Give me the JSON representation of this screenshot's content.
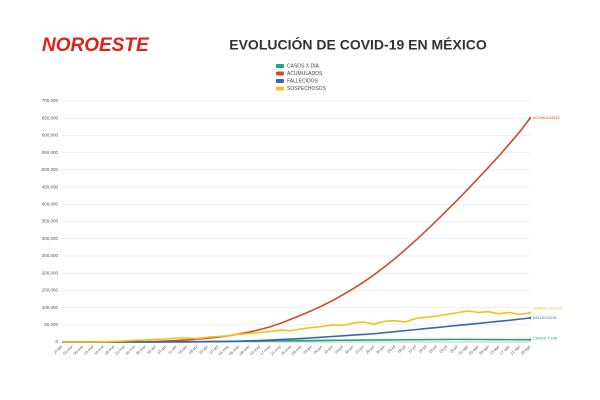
{
  "brand": "NOROESTE",
  "chart_data": {
    "type": "line",
    "title": "EVOLUCIÓN DE COVID-19 EN MÉXICO",
    "categories": [
      "27-feb",
      "02-mar",
      "06-mar",
      "10-mar",
      "14-mar",
      "18-mar",
      "22-mar",
      "26-mar",
      "30-mar",
      "03-abr",
      "07-abr",
      "11-abr",
      "15-abr",
      "19-abr",
      "23-abr",
      "27-abr",
      "01-may",
      "05-may",
      "09-may",
      "13-may",
      "17-may",
      "21-may",
      "25-may",
      "29-may",
      "02-jun",
      "06-jun",
      "10-jun",
      "14-jun",
      "18-jun",
      "22-jun",
      "26-jun",
      "30-jun",
      "04-jul",
      "08-jul",
      "12-jul",
      "16-jul",
      "20-jul",
      "24-jul",
      "28-jul",
      "01-ago",
      "05-ago",
      "09-ago",
      "13-ago",
      "17-ago",
      "21-ago",
      "25-ago"
    ],
    "series": [
      {
        "name": "CASOS X DÍA",
        "color": "#1aa87a",
        "values": [
          0,
          0,
          0,
          0,
          0,
          20,
          60,
          120,
          200,
          300,
          500,
          700,
          900,
          1100,
          1300,
          1500,
          1700,
          2000,
          2300,
          2700,
          3000,
          3300,
          3600,
          3900,
          4200,
          4500,
          4800,
          5100,
          5300,
          5500,
          5800,
          6000,
          6200,
          6500,
          6800,
          7000,
          7200,
          7400,
          7600,
          7500,
          7300,
          7200,
          7000,
          6900,
          6800,
          6700
        ]
      },
      {
        "name": "ACUMULADOS",
        "color": "#d04a2a",
        "values": [
          0,
          0,
          0,
          0,
          0,
          100,
          300,
          600,
          1100,
          1700,
          2800,
          4200,
          6000,
          8300,
          11000,
          14000,
          18000,
          23000,
          29000,
          36000,
          44000,
          54000,
          66000,
          78000,
          91000,
          105000,
          120000,
          137000,
          155000,
          174000,
          195000,
          218000,
          242000,
          268000,
          295000,
          323000,
          352000,
          382000,
          412000,
          443000,
          475000,
          507000,
          540000,
          575000,
          610000,
          650000
        ]
      },
      {
        "name": "FALLECIDOS",
        "color": "#3a64b0",
        "values": [
          0,
          0,
          0,
          0,
          0,
          0,
          0,
          0,
          10,
          30,
          80,
          150,
          300,
          500,
          800,
          1200,
          1800,
          2500,
          3300,
          4300,
          5500,
          7000,
          8500,
          10000,
          12000,
          14000,
          16000,
          18000,
          20000,
          22000,
          24000,
          27000,
          30000,
          33000,
          36000,
          39000,
          42000,
          45000,
          48000,
          51000,
          54000,
          57000,
          60000,
          63000,
          66500,
          70000
        ]
      },
      {
        "name": "SOSPECHOSOS",
        "color": "#f2c21b",
        "values": [
          0,
          0,
          0,
          0,
          500,
          1500,
          3000,
          5000,
          6000,
          8000,
          9000,
          11000,
          12000,
          10000,
          14000,
          16000,
          18000,
          22000,
          25000,
          28000,
          30000,
          35000,
          33000,
          38000,
          42000,
          45000,
          50000,
          48000,
          55000,
          58000,
          52000,
          60000,
          62000,
          58000,
          68000,
          72000,
          75000,
          80000,
          85000,
          90000,
          86000,
          88000,
          82000,
          86000,
          80000,
          85000
        ]
      }
    ],
    "ylim": [
      0,
      700000
    ],
    "yticks": [
      0,
      {
        "value": 50000,
        "label": "50,000"
      },
      {
        "value": 100000,
        "label": "100,000"
      },
      {
        "value": 150000,
        "label": "150,000"
      },
      {
        "value": 200000,
        "label": "200,000"
      },
      {
        "value": 250000,
        "label": "250,000"
      },
      {
        "value": 300000,
        "label": "300,000"
      },
      {
        "value": 350000,
        "label": "350,000"
      },
      {
        "value": 400000,
        "label": "400,000"
      },
      {
        "value": 450000,
        "label": "450,000"
      },
      {
        "value": 500000,
        "label": "500,000"
      },
      {
        "value": 550000,
        "label": "550,000"
      },
      {
        "value": 600000,
        "label": "600,000"
      },
      {
        "value": 650000,
        "label": "650,000"
      },
      {
        "value": 700000,
        "label": "700,000"
      }
    ],
    "grid": true
  }
}
